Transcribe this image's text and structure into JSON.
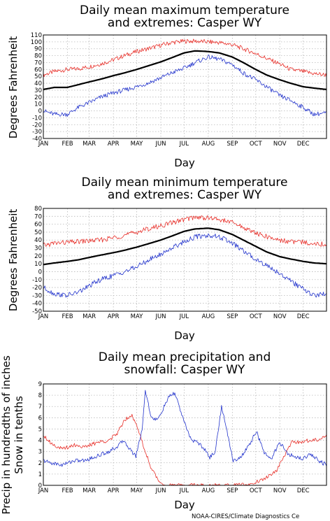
{
  "chart_data": [
    {
      "type": "line",
      "title_line1": "Daily mean maximum temperature",
      "title_line2": "and extremes: Casper WY",
      "ylabel": "Degrees Fahrenheit",
      "xlabel": "Day",
      "ylim": [
        -40,
        110
      ],
      "ystep": 10,
      "months": [
        "JAN",
        "FEB",
        "MAR",
        "APR",
        "MAY",
        "JUN",
        "JUL",
        "AUG",
        "SEP",
        "OCT",
        "NOV",
        "DEC"
      ],
      "grid": true,
      "series": [
        {
          "color": "#e8302a",
          "role": "record-high",
          "day": [
            1,
            15,
            32,
            46,
            60,
            75,
            91,
            105,
            121,
            135,
            152,
            166,
            182,
            196,
            213,
            227,
            244,
            258,
            274,
            288,
            305,
            319,
            335,
            349,
            365
          ],
          "value": [
            52,
            57,
            60,
            61,
            64,
            68,
            74,
            80,
            86,
            90,
            95,
            99,
            101,
            101,
            100,
            99,
            96,
            90,
            83,
            76,
            68,
            60,
            57,
            54,
            52
          ]
        },
        {
          "color": "#000000",
          "role": "mean",
          "day": [
            1,
            15,
            32,
            46,
            60,
            75,
            91,
            105,
            121,
            135,
            152,
            166,
            182,
            196,
            213,
            227,
            244,
            258,
            274,
            288,
            305,
            319,
            335,
            349,
            365
          ],
          "value": [
            31,
            34,
            34,
            38,
            42,
            46,
            51,
            55,
            60,
            65,
            71,
            77,
            84,
            87,
            86,
            84,
            78,
            70,
            60,
            52,
            45,
            40,
            35,
            33,
            31
          ]
        },
        {
          "color": "#2233cc",
          "role": "record-low",
          "day": [
            1,
            15,
            32,
            46,
            60,
            75,
            91,
            105,
            121,
            135,
            152,
            166,
            182,
            196,
            213,
            227,
            244,
            258,
            274,
            288,
            305,
            319,
            335,
            349,
            365
          ],
          "value": [
            0,
            -5,
            -5,
            5,
            12,
            20,
            26,
            30,
            35,
            40,
            48,
            55,
            62,
            70,
            78,
            75,
            67,
            55,
            45,
            35,
            22,
            15,
            5,
            -5,
            -3
          ]
        }
      ]
    },
    {
      "type": "line",
      "title_line1": "Daily mean minimum temperature",
      "title_line2": "and extremes: Casper WY",
      "ylabel": "Degrees Fahrenheit",
      "xlabel": "Day",
      "ylim": [
        -50,
        80
      ],
      "ystep": 10,
      "months": [
        "JAN",
        "FEB",
        "MAR",
        "APR",
        "MAY",
        "JUN",
        "JUL",
        "AUG",
        "SEP",
        "OCT",
        "NOV",
        "DEC"
      ],
      "grid": true,
      "series": [
        {
          "color": "#e8302a",
          "role": "record-high",
          "day": [
            1,
            15,
            32,
            46,
            60,
            75,
            91,
            105,
            121,
            135,
            152,
            166,
            182,
            196,
            213,
            227,
            244,
            258,
            274,
            288,
            305,
            319,
            335,
            349,
            365
          ],
          "value": [
            33,
            36,
            37,
            38,
            39,
            40,
            43,
            46,
            50,
            54,
            58,
            62,
            66,
            69,
            68,
            66,
            62,
            56,
            49,
            44,
            40,
            38,
            37,
            36,
            34
          ]
        },
        {
          "color": "#000000",
          "role": "mean",
          "day": [
            1,
            15,
            32,
            46,
            60,
            75,
            91,
            105,
            121,
            135,
            152,
            166,
            182,
            196,
            213,
            227,
            244,
            258,
            274,
            288,
            305,
            319,
            335,
            349,
            365
          ],
          "value": [
            9,
            11,
            13,
            15,
            18,
            21,
            24,
            27,
            31,
            35,
            40,
            45,
            51,
            54,
            55,
            53,
            47,
            40,
            32,
            25,
            19,
            16,
            13,
            11,
            10
          ]
        },
        {
          "color": "#2233cc",
          "role": "record-low",
          "day": [
            1,
            15,
            32,
            46,
            60,
            75,
            91,
            105,
            121,
            135,
            152,
            166,
            182,
            196,
            213,
            227,
            244,
            258,
            274,
            288,
            305,
            319,
            335,
            349,
            365
          ],
          "value": [
            -20,
            -28,
            -30,
            -26,
            -18,
            -10,
            -5,
            0,
            6,
            14,
            22,
            30,
            38,
            44,
            46,
            44,
            36,
            26,
            16,
            8,
            -2,
            -12,
            -22,
            -30,
            -28
          ]
        }
      ]
    },
    {
      "type": "line",
      "title_line1": "Daily mean precipitation and",
      "title_line2": "snowfall: Casper WY",
      "ylabel_line1": "Precip in hundredths of inches",
      "ylabel_line2": "Snow in tenths",
      "xlabel": "Day",
      "ylim": [
        0,
        9
      ],
      "ystep": 1,
      "months": [
        "JAN",
        "FEB",
        "MAR",
        "APR",
        "MAY",
        "JUN",
        "JUL",
        "AUG",
        "SEP",
        "OCT",
        "NOV",
        "DEC"
      ],
      "grid": true,
      "series": [
        {
          "color": "#e8302a",
          "role": "snow",
          "day": [
            1,
            10,
            25,
            40,
            55,
            70,
            85,
            95,
            105,
            115,
            125,
            132,
            140,
            148,
            155,
            165,
            175,
            200,
            230,
            250,
            265,
            280,
            290,
            300,
            310,
            320,
            335,
            350,
            358,
            365
          ],
          "value": [
            4.5,
            3.8,
            3.2,
            3.6,
            3.4,
            3.8,
            4.0,
            4.5,
            5.8,
            6.3,
            4.5,
            3.0,
            1.5,
            0.5,
            0.1,
            0,
            0,
            0,
            0,
            0,
            0.1,
            0.4,
            0.8,
            1.2,
            2.5,
            3.8,
            3.9,
            4.0,
            4.2,
            4.5
          ]
        },
        {
          "color": "#2233cc",
          "role": "precip",
          "day": [
            1,
            10,
            25,
            40,
            55,
            70,
            85,
            95,
            105,
            112,
            120,
            128,
            132,
            140,
            148,
            155,
            162,
            170,
            178,
            185,
            192,
            200,
            208,
            215,
            222,
            230,
            238,
            245,
            255,
            265,
            275,
            285,
            295,
            305,
            315,
            325,
            335,
            345,
            355,
            365
          ],
          "value": [
            2.2,
            2.0,
            1.8,
            2.2,
            2.2,
            2.6,
            3.0,
            3.4,
            4.0,
            3.2,
            2.6,
            5.0,
            8.4,
            6.0,
            5.8,
            6.8,
            7.8,
            8.2,
            6.5,
            5.0,
            4.0,
            3.8,
            3.2,
            2.5,
            3.0,
            7.0,
            4.5,
            2.2,
            2.5,
            3.5,
            4.8,
            2.8,
            2.5,
            3.8,
            2.8,
            2.5,
            2.4,
            2.8,
            2.2,
            1.8
          ]
        }
      ]
    }
  ],
  "credit": "NOAA-CIRES/Climate Diagnostics Ce"
}
